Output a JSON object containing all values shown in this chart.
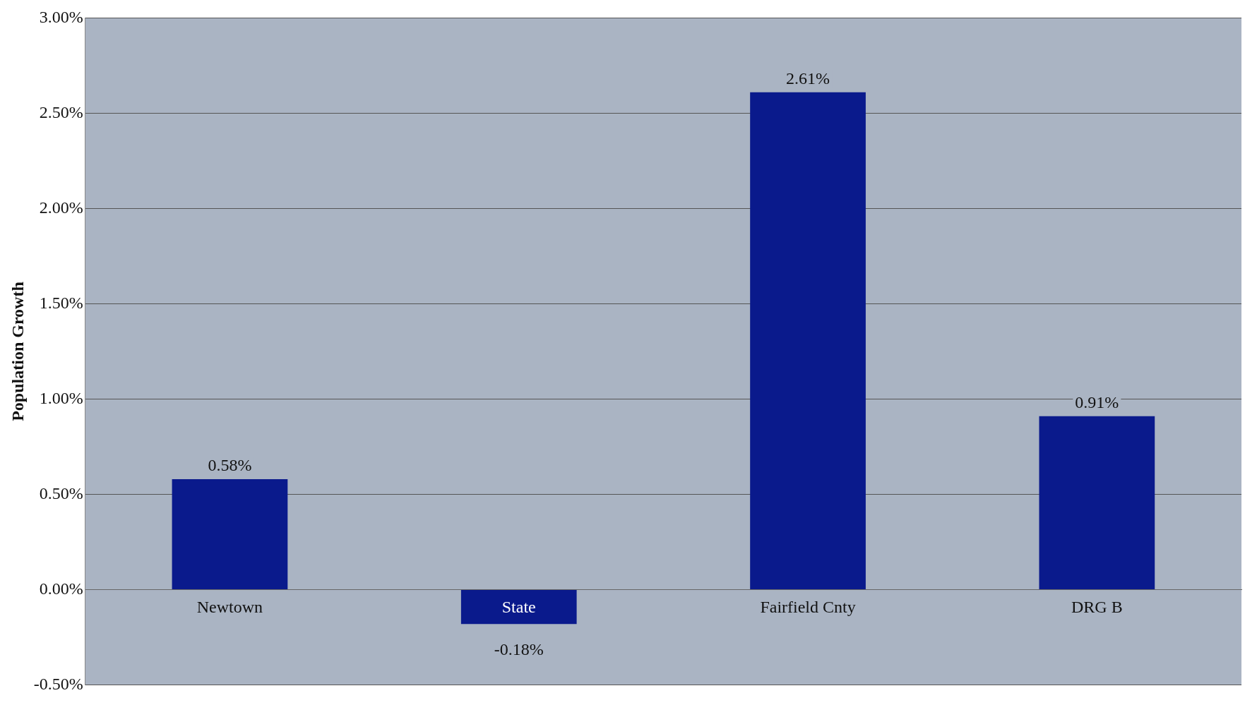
{
  "chart_data": {
    "type": "bar",
    "ylabel": "Population Growth",
    "categories": [
      "Newtown",
      "State",
      "Fairfield Cnty",
      "DRG B"
    ],
    "values": [
      0.58,
      -0.18,
      2.61,
      0.91
    ],
    "color": "#0a1a8c",
    "value_labels": [
      "0.58%",
      "-0.18%",
      "2.61%",
      "0.91%"
    ],
    "ylim": [
      -0.5,
      3
    ],
    "yticks": [
      {
        "value": -0.5,
        "label": "-0.50%"
      },
      {
        "value": 0,
        "label": "0.00%"
      },
      {
        "value": 0.5,
        "label": "0.50%"
      },
      {
        "value": 1,
        "label": "1.00%"
      },
      {
        "value": 1.5,
        "label": "1.50%"
      },
      {
        "value": 2,
        "label": "2.00%"
      },
      {
        "value": 2.5,
        "label": "2.50%"
      },
      {
        "value": 3,
        "label": "3.00%"
      }
    ],
    "grid": "y",
    "legend": false
  }
}
